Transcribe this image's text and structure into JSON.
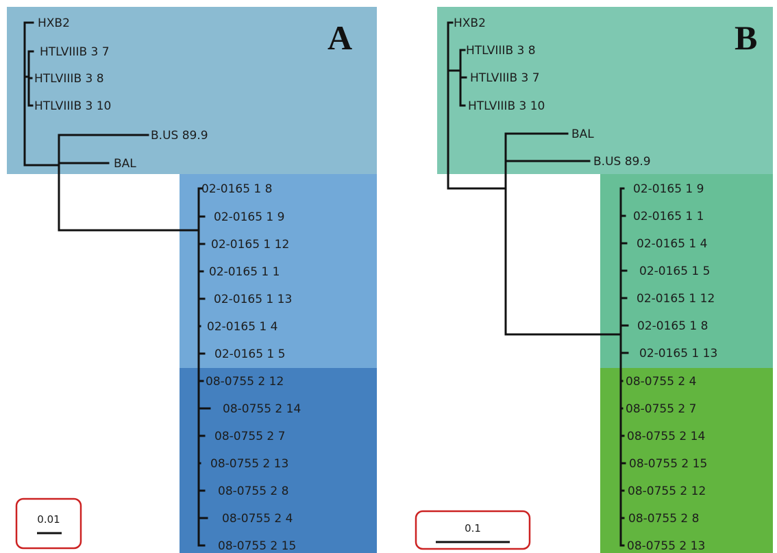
{
  "colors": {
    "a_reference": "#8bbbd2",
    "a_patient_02_0165": "#72a9d8",
    "a_patient_08_0755": "#4480bf",
    "b_reference": "#7ec8b1",
    "b_patient_02_0165": "#67bf97",
    "b_patient_08_0755": "#62b53f",
    "scale_box_border": "#cc2222"
  },
  "panel_a": {
    "letter": "A",
    "scale_label": "0.01",
    "leaves": [
      "HXB2",
      "HTLVIIIB 3 7",
      "HTLVIIIB 3 8",
      "HTLVIIIB 3 10",
      "B.US 89.9",
      "BAL",
      "02-0165 1 8",
      "02-0165 1 9",
      "02-0165 1 12",
      "02-0165 1 1",
      "02-0165 1 13",
      "02-0165 1 4",
      "02-0165 1 5",
      "08-0755 2 12",
      "08-0755 2 14",
      "08-0755 2 7",
      "08-0755 2 13",
      "08-0755 2 8",
      "08-0755 2 4",
      "08-0755 2 15"
    ]
  },
  "panel_b": {
    "letter": "B",
    "scale_label": "0.1",
    "leaves": [
      "HXB2",
      "HTLVIIIB 3 8",
      "HTLVIIIB 3 7",
      "HTLVIIIB 3 10",
      "BAL",
      "B.US 89.9",
      "02-0165 1 9",
      "02-0165 1 1",
      "02-0165 1 4",
      "02-0165 1 5",
      "02-0165 1 12",
      "02-0165 1 8",
      "02-0165 1 13",
      "08-0755 2 4",
      "08-0755 2 7",
      "08-0755 2 14",
      "08-0755 2 15",
      "08-0755 2 12",
      "08-0755 2 8",
      "08-0755 2 13"
    ]
  }
}
